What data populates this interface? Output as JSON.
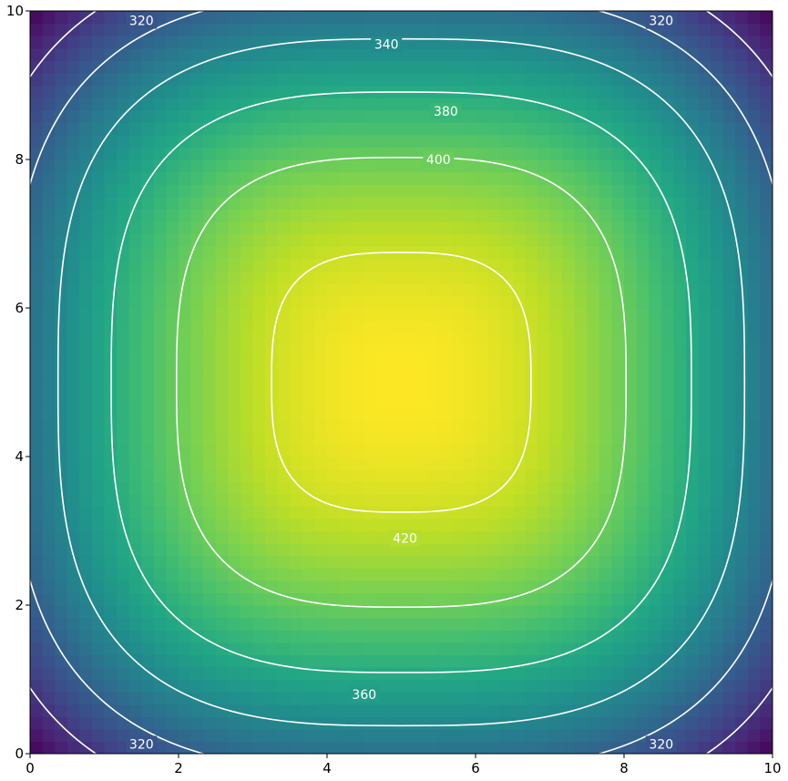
{
  "chart_data": {
    "type": "heatmap",
    "subtype": "filled-contour-with-isolines",
    "colormap": "viridis",
    "grid": false,
    "xlim": [
      0,
      10
    ],
    "ylim": [
      0,
      10
    ],
    "x_ticks": [
      0,
      2,
      4,
      6,
      8,
      10
    ],
    "y_ticks": [
      0,
      2,
      4,
      6,
      8,
      10
    ],
    "x_tick_labels": [
      "0",
      "2",
      "4",
      "6",
      "8",
      "10"
    ],
    "y_tick_labels": [
      "0",
      "2",
      "4",
      "6",
      "8",
      "10"
    ],
    "value_range": [
      300,
      430
    ],
    "peak": {
      "x": 5,
      "y": 5,
      "value": 430
    },
    "contour_color": "#ffffff",
    "contour_levels": [
      320,
      340,
      360,
      380,
      400,
      420
    ],
    "contour_labels": [
      {
        "text": "320",
        "x": 1.5,
        "y": 9.87
      },
      {
        "text": "320",
        "x": 8.5,
        "y": 9.87
      },
      {
        "text": "340",
        "x": 4.8,
        "y": 9.55
      },
      {
        "text": "380",
        "x": 5.6,
        "y": 8.65
      },
      {
        "text": "400",
        "x": 5.5,
        "y": 8.0
      },
      {
        "text": "420",
        "x": 5.05,
        "y": 2.9
      },
      {
        "text": "360",
        "x": 4.5,
        "y": 0.8
      },
      {
        "text": "320",
        "x": 1.5,
        "y": 0.13
      },
      {
        "text": "320",
        "x": 8.5,
        "y": 0.13
      }
    ]
  }
}
